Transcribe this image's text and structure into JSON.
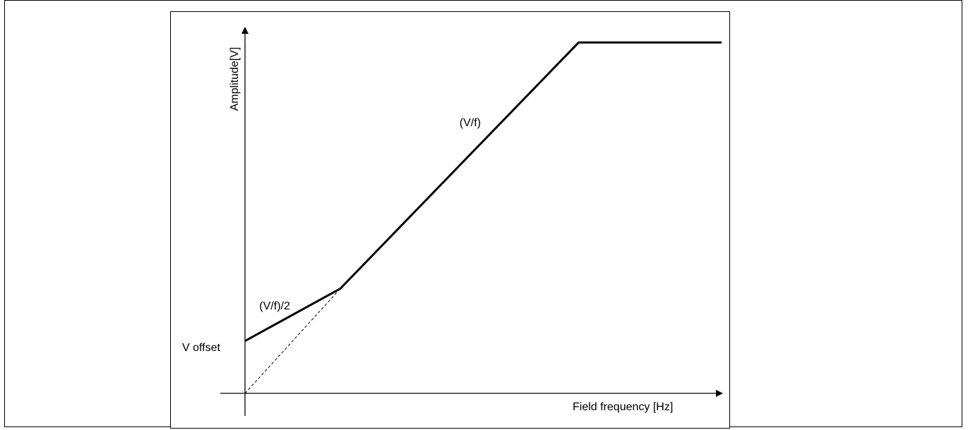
{
  "chart_data": {
    "type": "line",
    "title": "",
    "xlabel": "Field frequency [Hz]",
    "ylabel": "Amplitude[V]",
    "grid": false,
    "legend": "none",
    "xlim": [
      0,
      10
    ],
    "ylim": [
      0,
      7
    ],
    "reference_levels": {
      "y_marker_label": "V offset",
      "y_marker_value": 1
    },
    "series": [
      {
        "name": "",
        "style": "solid",
        "color": "#000000",
        "x": [
          0,
          2.0,
          7.0,
          10.0
        ],
        "y": [
          1.0,
          2.0,
          6.7,
          6.7
        ]
      },
      {
        "name": "",
        "style": "dashed",
        "color": "#000000",
        "x": [
          0,
          2.0
        ],
        "y": [
          0,
          2.0
        ]
      }
    ],
    "annotations": [
      {
        "text": "(V/f)/2",
        "x": 0.3,
        "y": 1.6
      },
      {
        "text": "(V/f)",
        "x": 4.5,
        "y": 5.1
      }
    ]
  }
}
